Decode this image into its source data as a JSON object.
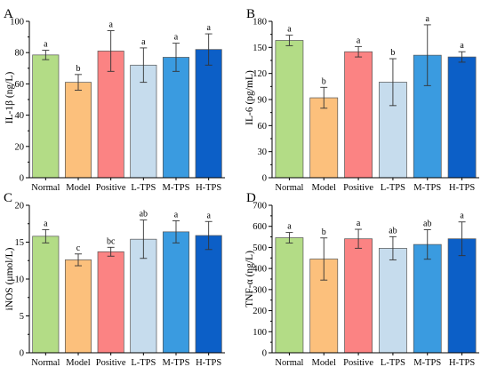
{
  "colors": {
    "bars": [
      "#b3dc86",
      "#fcc07c",
      "#fb8383",
      "#c6dced",
      "#3a9be0",
      "#0c5fc7"
    ],
    "bar_stroke": "#555555",
    "axis": "#000000"
  },
  "chart_data": [
    {
      "type": "bar",
      "panel": "A",
      "ylabel": "IL-1β (ng/L)",
      "ylim": [
        0,
        100
      ],
      "yticks": [
        0,
        20,
        40,
        60,
        80,
        100
      ],
      "categories": [
        "Normal",
        "Model",
        "Positive",
        "L-TPS",
        "M-TPS",
        "H-TPS"
      ],
      "values": [
        78.5,
        61,
        81,
        72,
        77,
        82
      ],
      "errors": [
        3,
        5,
        13,
        11,
        9,
        10
      ],
      "letters": [
        "a",
        "b",
        "a",
        "a",
        "a",
        "a"
      ]
    },
    {
      "type": "bar",
      "panel": "B",
      "ylabel": "IL-6 (pg/mL)",
      "ylim": [
        0,
        180
      ],
      "yticks": [
        0,
        30,
        60,
        90,
        120,
        150,
        180
      ],
      "categories": [
        "Normal",
        "Model",
        "Positive",
        "L-TPS",
        "M-TPS",
        "H-TPS"
      ],
      "values": [
        158,
        92,
        145,
        110,
        141,
        139
      ],
      "errors": [
        6,
        12,
        6,
        27,
        35,
        6
      ],
      "letters": [
        "a",
        "b",
        "a",
        "b",
        "a",
        "a"
      ]
    },
    {
      "type": "bar",
      "panel": "C",
      "ylabel": "iNOS (μmol/L)",
      "ylim": [
        0,
        20
      ],
      "yticks": [
        0,
        5,
        10,
        15,
        20
      ],
      "categories": [
        "Normal",
        "Model",
        "Positive",
        "L-TPS",
        "M-TPS",
        "H-TPS"
      ],
      "values": [
        15.8,
        12.6,
        13.7,
        15.4,
        16.4,
        15.9
      ],
      "errors": [
        0.9,
        0.8,
        0.6,
        2.6,
        1.5,
        1.9
      ],
      "letters": [
        "a",
        "c",
        "bc",
        "ab",
        "a",
        "a"
      ]
    },
    {
      "type": "bar",
      "panel": "D",
      "ylabel": "TNF-α (ng/L)",
      "ylim": [
        0,
        700
      ],
      "yticks": [
        0,
        100,
        200,
        300,
        400,
        500,
        600,
        700
      ],
      "categories": [
        "Normal",
        "Model",
        "Positive",
        "L-TPS",
        "M-TPS",
        "H-TPS"
      ],
      "values": [
        546,
        445,
        541,
        496,
        514,
        541
      ],
      "errors": [
        25,
        100,
        45,
        55,
        70,
        80
      ],
      "letters": [
        "a",
        "b",
        "a",
        "ab",
        "ab",
        "a"
      ]
    }
  ]
}
